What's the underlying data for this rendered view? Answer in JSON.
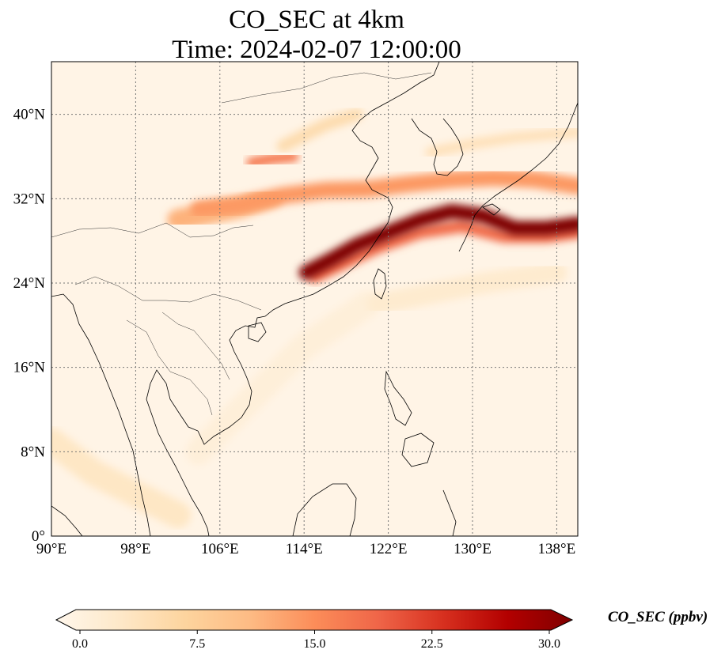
{
  "title": {
    "line1": "CO_SEC at 4km",
    "line2": "Time: 2024-02-07 12:00:00"
  },
  "map": {
    "extent": {
      "lon_min": 90,
      "lon_max": 140,
      "lat_min": 0,
      "lat_max": 45
    },
    "gridlines": "dotted",
    "lon_ticks": [
      {
        "value": 90,
        "label": "90°E"
      },
      {
        "value": 98,
        "label": "98°E"
      },
      {
        "value": 106,
        "label": "106°E"
      },
      {
        "value": 114,
        "label": "114°E"
      },
      {
        "value": 122,
        "label": "122°E"
      },
      {
        "value": 130,
        "label": "130°E"
      },
      {
        "value": 138,
        "label": "138°E"
      }
    ],
    "lat_ticks": [
      {
        "value": 0,
        "label": "0°"
      },
      {
        "value": 8,
        "label": "8°N"
      },
      {
        "value": 16,
        "label": "16°N"
      },
      {
        "value": 24,
        "label": "24°N"
      },
      {
        "value": 32,
        "label": "32°N"
      },
      {
        "value": 40,
        "label": "40°N"
      }
    ]
  },
  "colorbar": {
    "label": "CO_SEC (ppbv)",
    "colormap": "OrRd",
    "colors": [
      "#fff7ec",
      "#fee8c8",
      "#fdd49e",
      "#fdbb84",
      "#fc8d59",
      "#ef6548",
      "#d7301f",
      "#b30000",
      "#7f0000"
    ],
    "min": 0,
    "max": 30,
    "ticks": [
      "0.0",
      "7.5",
      "15.0",
      "22.5",
      "30.0"
    ],
    "extend": "both"
  },
  "plumes": [
    {
      "name": "main-band-east-china-sea",
      "value": 30,
      "path": [
        [
          114.2,
          25.0
        ],
        [
          116.5,
          26.2
        ],
        [
          119,
          27.6
        ],
        [
          122,
          28.8
        ],
        [
          125,
          30.0
        ],
        [
          128,
          30.8
        ],
        [
          131,
          30.4
        ],
        [
          134,
          29.2
        ],
        [
          137,
          29.2
        ],
        [
          140,
          29.6
        ]
      ],
      "width_deg": 1.4
    },
    {
      "name": "band-edge-south",
      "value": 18,
      "path": [
        [
          115,
          24.6
        ],
        [
          118,
          26.0
        ],
        [
          121,
          27.4
        ],
        [
          125,
          28.8
        ],
        [
          129,
          29.4
        ],
        [
          133,
          28.4
        ],
        [
          137,
          28.4
        ],
        [
          140,
          28.8
        ]
      ],
      "width_deg": 1.2
    },
    {
      "name": "band-north-of-yangtze",
      "value": 14,
      "path": [
        [
          104,
          31.0
        ],
        [
          108,
          31.4
        ],
        [
          112,
          32.3
        ],
        [
          116,
          32.8
        ],
        [
          120,
          32.9
        ],
        [
          124,
          33.4
        ],
        [
          128,
          33.8
        ],
        [
          132,
          34.0
        ],
        [
          136,
          33.8
        ],
        [
          140,
          33.2
        ]
      ],
      "width_deg": 1.6
    },
    {
      "name": "band-sichuan",
      "value": 12,
      "path": [
        [
          102,
          30.0
        ],
        [
          105,
          30.6
        ],
        [
          108,
          31.2
        ],
        [
          111,
          32.2
        ]
      ],
      "width_deg": 2.0
    },
    {
      "name": "plume-shaanxi",
      "value": 17,
      "path": [
        [
          109,
          35.4
        ],
        [
          111,
          35.8
        ],
        [
          113,
          36.0
        ]
      ],
      "width_deg": 1.0
    },
    {
      "name": "faint-north-plume",
      "value": 6,
      "path": [
        [
          112,
          37.0
        ],
        [
          114,
          38.0
        ],
        [
          116,
          39.0
        ],
        [
          119,
          40.0
        ]
      ],
      "width_deg": 1.2
    },
    {
      "name": "faint-streak-japan-north",
      "value": 5,
      "path": [
        [
          126,
          36.4
        ],
        [
          130,
          37.2
        ],
        [
          134,
          37.8
        ],
        [
          140,
          38.3
        ]
      ],
      "width_deg": 1.0
    },
    {
      "name": "faint-philippine-sea",
      "value": 3,
      "path": [
        [
          121,
          22.0
        ],
        [
          126,
          23.0
        ],
        [
          131,
          24.0
        ],
        [
          138,
          25.0
        ]
      ],
      "width_deg": 2.0
    },
    {
      "name": "faint-south-china-sea",
      "value": 2,
      "path": [
        [
          104,
          8.0
        ],
        [
          110,
          14.0
        ],
        [
          114,
          18.0
        ],
        [
          120,
          22.0
        ]
      ],
      "width_deg": 2.5
    },
    {
      "name": "faint-indochina",
      "value": 4,
      "path": [
        [
          90,
          9.0
        ],
        [
          94,
          6.0
        ],
        [
          98,
          4.0
        ],
        [
          102,
          2.0
        ]
      ],
      "width_deg": 2.5
    }
  ]
}
